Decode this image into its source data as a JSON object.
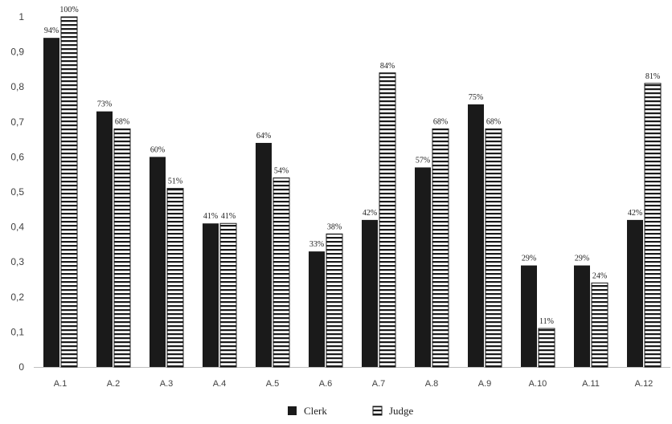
{
  "chart_data": {
    "type": "bar",
    "categories": [
      "A.1",
      "A.2",
      "A.3",
      "A.4",
      "A.5",
      "A.6",
      "A.7",
      "A.8",
      "A.9",
      "A.10",
      "A.11",
      "A.12"
    ],
    "series": [
      {
        "name": "Clerk",
        "values": [
          0.94,
          0.73,
          0.6,
          0.41,
          0.64,
          0.33,
          0.42,
          0.57,
          0.75,
          0.29,
          0.29,
          0.42
        ],
        "labels": [
          "94%",
          "73%",
          "60%",
          "41%",
          "64%",
          "33%",
          "42%",
          "57%",
          "75%",
          "29%",
          "29%",
          "42%"
        ],
        "fill": "#1a1a1a",
        "pattern": "solid"
      },
      {
        "name": "Judge",
        "values": [
          1.0,
          0.68,
          0.51,
          0.41,
          0.54,
          0.38,
          0.84,
          0.68,
          0.68,
          0.11,
          0.24,
          0.81
        ],
        "labels": [
          "100%",
          "68%",
          "51%",
          "41%",
          "54%",
          "38%",
          "84%",
          "68%",
          "68%",
          "11%",
          "24%",
          "81%"
        ],
        "fill": "#ffffff",
        "pattern": "horizontal-stripes"
      }
    ],
    "title": "",
    "xlabel": "",
    "ylabel": "",
    "ylim": [
      0,
      1
    ],
    "yticks": [
      "0",
      "0,1",
      "0,2",
      "0,3",
      "0,4",
      "0,5",
      "0,6",
      "0,7",
      "0,8",
      "0,9",
      "1"
    ],
    "grid": false,
    "legend_position": "bottom-center"
  }
}
